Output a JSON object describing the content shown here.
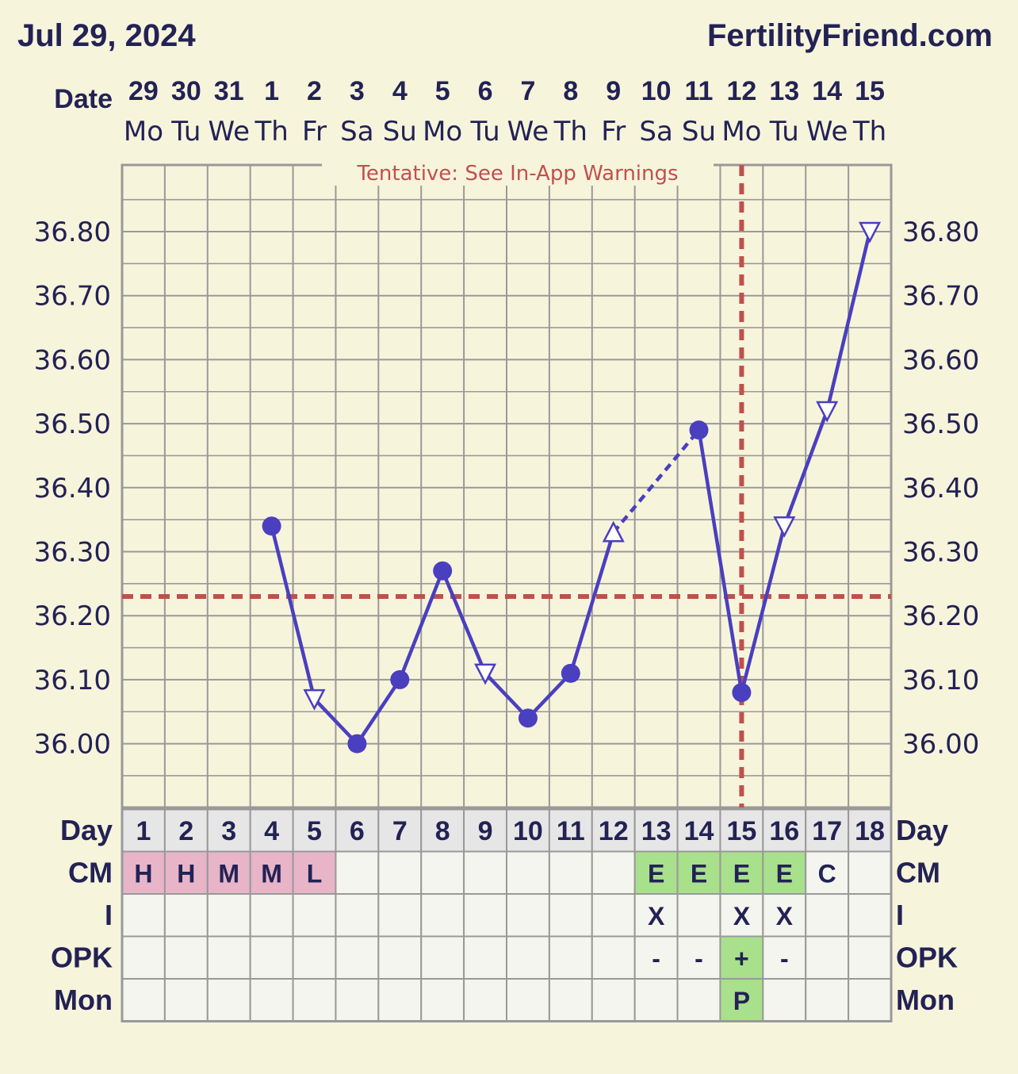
{
  "header": {
    "date": "Jul 29, 2024",
    "site": "FertilityFriend.com",
    "date_row_label": "Date",
    "tentative_note": "Tentative: See In-App Warnings"
  },
  "colors": {
    "background": "#f7f4dc",
    "line": "#4a3fbf",
    "coverline": "#c0504d",
    "grid": "#999999",
    "text": "#222255",
    "cm_pink": "#e8b4c8",
    "cm_green": "#a8e08c",
    "row_header_bg": "#e6e6e6"
  },
  "chart_data": {
    "type": "line",
    "title": "",
    "ylabel": "",
    "ylim": [
      35.9,
      36.9
    ],
    "yticks": [
      "36.00",
      "36.10",
      "36.20",
      "36.30",
      "36.40",
      "36.50",
      "36.60",
      "36.70",
      "36.80"
    ],
    "dates": [
      "29",
      "30",
      "31",
      "1",
      "2",
      "3",
      "4",
      "5",
      "6",
      "7",
      "8",
      "9",
      "10",
      "11",
      "12",
      "13",
      "14",
      "15"
    ],
    "weekdays": [
      "Mo",
      "Tu",
      "We",
      "Th",
      "Fr",
      "Sa",
      "Su",
      "Mo",
      "Tu",
      "We",
      "Th",
      "Fr",
      "Sa",
      "Su",
      "Mo",
      "Tu",
      "We",
      "Th"
    ],
    "days": [
      "1",
      "2",
      "3",
      "4",
      "5",
      "6",
      "7",
      "8",
      "9",
      "10",
      "11",
      "12",
      "13",
      "14",
      "15",
      "16",
      "17",
      "18"
    ],
    "series": [
      {
        "points": [
          {
            "day": 4,
            "temp": 36.34,
            "marker": "circle"
          },
          {
            "day": 5,
            "temp": 36.07,
            "marker": "triangle-down"
          },
          {
            "day": 6,
            "temp": 36.0,
            "marker": "circle"
          },
          {
            "day": 7,
            "temp": 36.1,
            "marker": "circle"
          },
          {
            "day": 8,
            "temp": 36.27,
            "marker": "circle"
          },
          {
            "day": 9,
            "temp": 36.11,
            "marker": "triangle-down"
          },
          {
            "day": 10,
            "temp": 36.04,
            "marker": "circle"
          },
          {
            "day": 11,
            "temp": 36.11,
            "marker": "circle"
          },
          {
            "day": 12,
            "temp": 36.33,
            "marker": "triangle-up"
          },
          {
            "day": 14,
            "temp": 36.49,
            "marker": "circle"
          },
          {
            "day": 15,
            "temp": 36.08,
            "marker": "circle"
          },
          {
            "day": 16,
            "temp": 36.34,
            "marker": "triangle-down"
          },
          {
            "day": 17,
            "temp": 36.52,
            "marker": "triangle-down"
          },
          {
            "day": 18,
            "temp": 36.8,
            "marker": "triangle-down"
          }
        ],
        "dashed_segments": [
          [
            12,
            14
          ]
        ]
      }
    ],
    "coverline": 36.23,
    "ovulation_day": 15,
    "rows": [
      {
        "label": "Day",
        "cells": [
          "1",
          "2",
          "3",
          "4",
          "5",
          "6",
          "7",
          "8",
          "9",
          "10",
          "11",
          "12",
          "13",
          "14",
          "15",
          "16",
          "17",
          "18"
        ],
        "fills": [
          "hdr",
          "hdr",
          "hdr",
          "hdr",
          "hdr",
          "hdr",
          "hdr",
          "hdr",
          "hdr",
          "hdr",
          "hdr",
          "hdr",
          "hdr",
          "hdr",
          "hdr",
          "hdr",
          "hdr",
          "hdr"
        ]
      },
      {
        "label": "CM",
        "cells": [
          "H",
          "H",
          "M",
          "M",
          "L",
          "",
          "",
          "",
          "",
          "",
          "",
          "",
          "E",
          "E",
          "E",
          "E",
          "C",
          ""
        ],
        "fills": [
          "pink",
          "pink",
          "pink",
          "pink",
          "pink",
          "",
          "",
          "",
          "",
          "",
          "",
          "",
          "green",
          "green",
          "green",
          "green",
          "",
          ""
        ]
      },
      {
        "label": "I",
        "cells": [
          "",
          "",
          "",
          "",
          "",
          "",
          "",
          "",
          "",
          "",
          "",
          "",
          "X",
          "",
          "X",
          "X",
          "",
          ""
        ],
        "fills": [
          "",
          "",
          "",
          "",
          "",
          "",
          "",
          "",
          "",
          "",
          "",
          "",
          "",
          "",
          "",
          "",
          "",
          ""
        ]
      },
      {
        "label": "OPK",
        "cells": [
          "",
          "",
          "",
          "",
          "",
          "",
          "",
          "",
          "",
          "",
          "",
          "",
          "-",
          "-",
          "+",
          "-",
          "",
          ""
        ],
        "fills": [
          "",
          "",
          "",
          "",
          "",
          "",
          "",
          "",
          "",
          "",
          "",
          "",
          "",
          "",
          "green",
          "",
          "",
          ""
        ]
      },
      {
        "label": "Mon",
        "cells": [
          "",
          "",
          "",
          "",
          "",
          "",
          "",
          "",
          "",
          "",
          "",
          "",
          "",
          "",
          "P",
          "",
          "",
          ""
        ],
        "fills": [
          "",
          "",
          "",
          "",
          "",
          "",
          "",
          "",
          "",
          "",
          "",
          "",
          "",
          "",
          "green",
          "",
          "",
          ""
        ]
      }
    ]
  }
}
